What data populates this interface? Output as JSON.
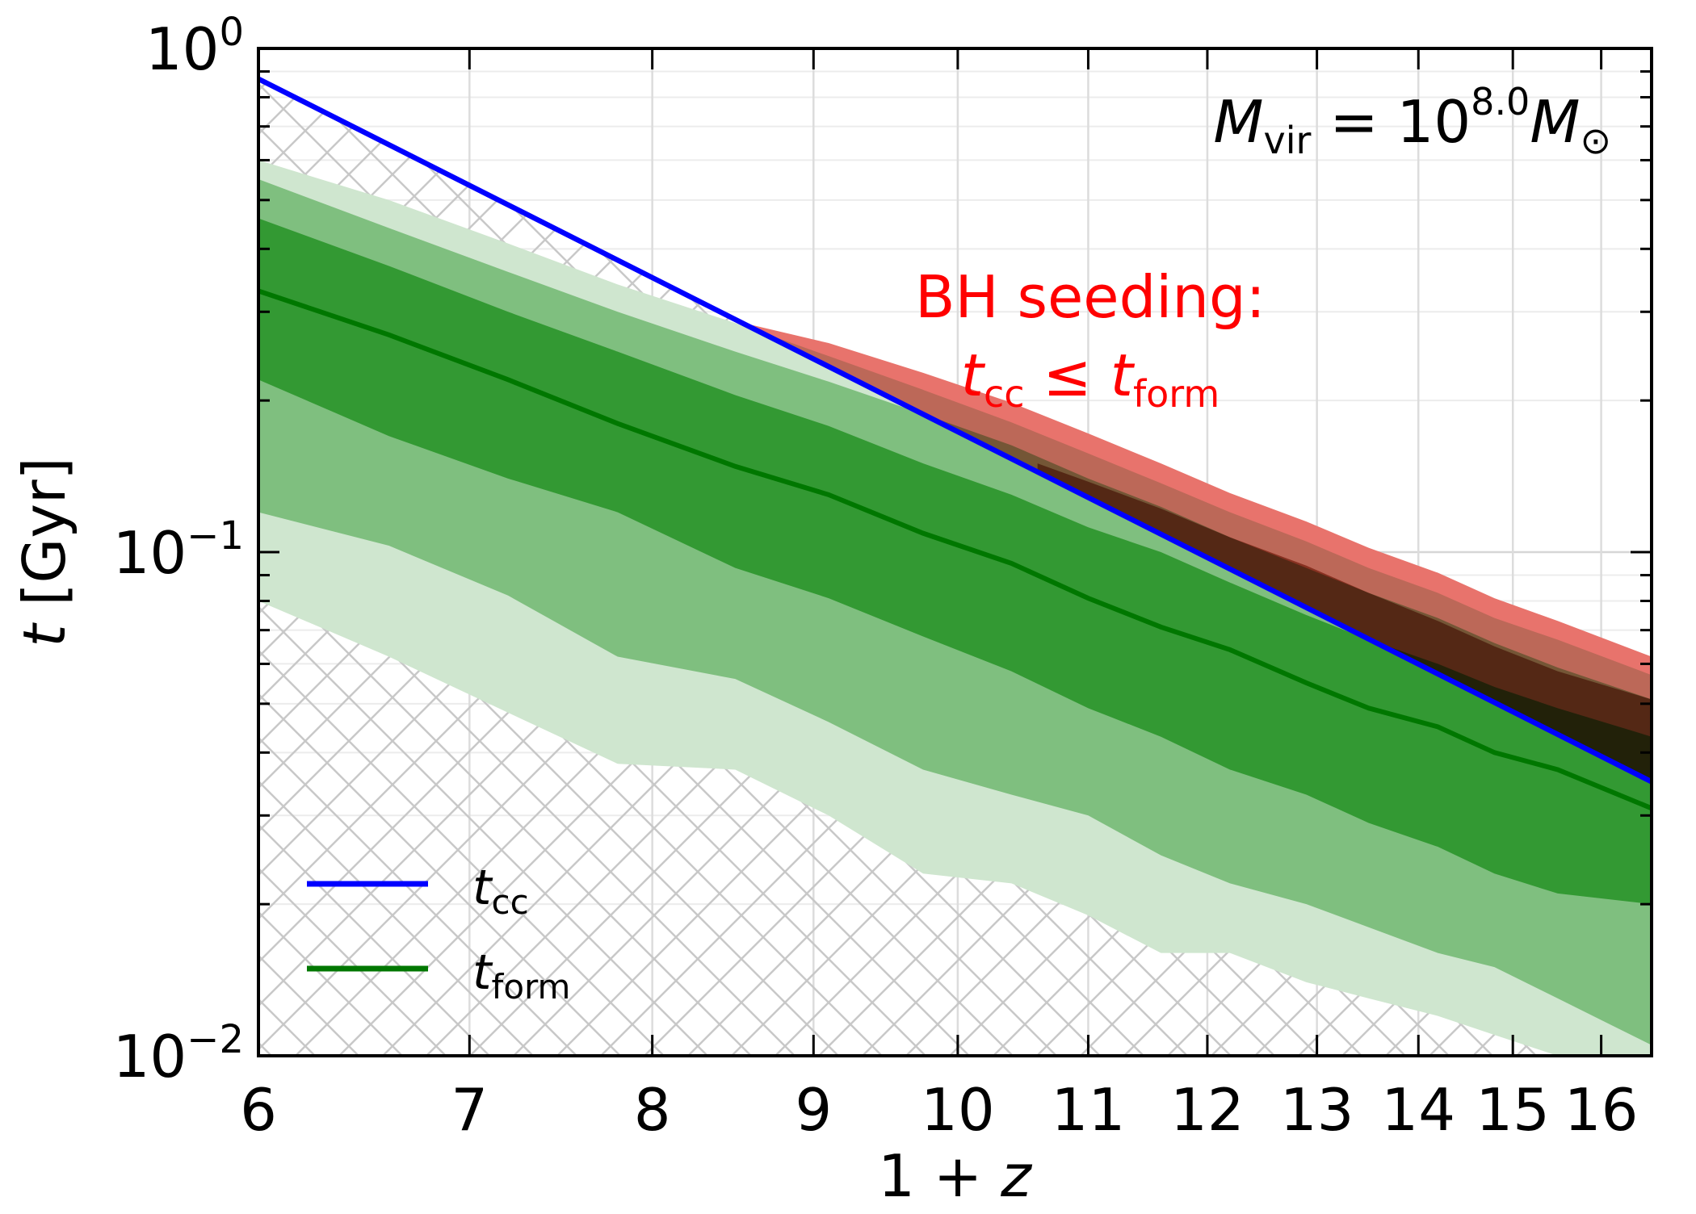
{
  "chart_data": {
    "type": "area",
    "xscale": "log",
    "yscale": "log",
    "xlim": [
      6,
      16.6
    ],
    "ylim": [
      0.01,
      1.0
    ],
    "xlabel": {
      "prefix": "1 + ",
      "var": "z"
    },
    "ylabel": {
      "var": "t",
      "unit": " [Gyr]"
    },
    "xticks": [
      6,
      7,
      8,
      9,
      10,
      11,
      12,
      13,
      14,
      15,
      16
    ],
    "yticks": [
      {
        "value": 0.01,
        "base": "10",
        "exp": "−2"
      },
      {
        "value": 0.1,
        "base": "10",
        "exp": "−1"
      },
      {
        "value": 1.0,
        "base": "10",
        "exp": "0"
      }
    ],
    "grid": true,
    "annotation_mass": {
      "sym": "M",
      "sub": "vir",
      "eq": " = 10",
      "exp": "8.0",
      "sym2": "M",
      "sub2": "⊙"
    },
    "annotation_seeding": {
      "line1": "BH seeding:",
      "t1": "t",
      "sub1": "cc",
      "rel": " ≤ ",
      "t2": "t",
      "sub2": "form"
    },
    "legend": {
      "position": "bottom-left",
      "entries": [
        {
          "label_var": "t",
          "label_sub": "cc",
          "color": "#0000ff"
        },
        {
          "label_var": "t",
          "label_sub": "form",
          "color": "#007700"
        }
      ]
    },
    "x": [
      6,
      6.6,
      7.2,
      7.8,
      8.5,
      9.1,
      9.75,
      10.4,
      11.0,
      11.6,
      12.2,
      12.9,
      13.5,
      14.2,
      14.8,
      15.5,
      16.6
    ],
    "series": {
      "t_cc": {
        "name": "t_cc",
        "color": "#0000ff",
        "x": [
          6,
          16.6
        ],
        "values": [
          0.87,
          0.035
        ]
      },
      "t_form_median": {
        "name": "t_form",
        "color": "#007700",
        "values": [
          0.33,
          0.27,
          0.22,
          0.18,
          0.148,
          0.13,
          0.109,
          0.095,
          0.081,
          0.071,
          0.064,
          0.055,
          0.049,
          0.045,
          0.04,
          0.037,
          0.031
        ]
      },
      "band_inner": {
        "color": "#339933",
        "lower": [
          0.22,
          0.17,
          0.14,
          0.12,
          0.093,
          0.081,
          0.068,
          0.058,
          0.049,
          0.043,
          0.037,
          0.033,
          0.029,
          0.026,
          0.023,
          0.021,
          0.02
        ],
        "upper": [
          0.46,
          0.37,
          0.3,
          0.25,
          0.205,
          0.178,
          0.15,
          0.13,
          0.112,
          0.1,
          0.087,
          0.075,
          0.067,
          0.06,
          0.054,
          0.049,
          0.043
        ]
      },
      "band_middle": {
        "color": "#7fbf7f",
        "lower": [
          0.12,
          0.103,
          0.082,
          0.062,
          0.056,
          0.046,
          0.037,
          0.033,
          0.03,
          0.025,
          0.022,
          0.02,
          0.018,
          0.016,
          0.015,
          0.013,
          0.0105
        ],
        "upper": [
          0.55,
          0.44,
          0.36,
          0.3,
          0.25,
          0.218,
          0.188,
          0.163,
          0.14,
          0.123,
          0.107,
          0.093,
          0.083,
          0.074,
          0.066,
          0.059,
          0.051
        ]
      },
      "band_outer": {
        "color": "#cfe6cf",
        "lower": [
          0.08,
          0.062,
          0.048,
          0.038,
          0.037,
          0.03,
          0.023,
          0.022,
          0.019,
          0.016,
          0.016,
          0.014,
          0.013,
          0.012,
          0.011,
          0.01,
          0.009
        ],
        "upper": [
          0.6,
          0.5,
          0.41,
          0.34,
          0.285,
          0.245,
          0.21,
          0.181,
          0.157,
          0.137,
          0.12,
          0.105,
          0.093,
          0.083,
          0.074,
          0.067,
          0.057
        ]
      },
      "seeding_region": {
        "color": "#e8736c",
        "x": [
          8.55,
          9.1,
          9.75,
          10.4,
          11.0,
          11.6,
          12.2,
          12.9,
          13.5,
          14.2,
          14.8,
          15.5,
          16.6
        ],
        "upper": [
          0.285,
          0.26,
          0.227,
          0.198,
          0.172,
          0.15,
          0.131,
          0.115,
          0.102,
          0.091,
          0.081,
          0.073,
          0.062
        ]
      },
      "seeding_inner": {
        "color": "#a04a2a",
        "x": [
          10.6,
          11.0,
          11.6,
          12.2,
          12.9,
          13.5,
          14.2,
          14.8,
          15.5,
          16.6
        ],
        "upper": [
          0.15,
          0.138,
          0.122,
          0.107,
          0.094,
          0.083,
          0.073,
          0.065,
          0.058,
          0.051
        ]
      }
    }
  }
}
